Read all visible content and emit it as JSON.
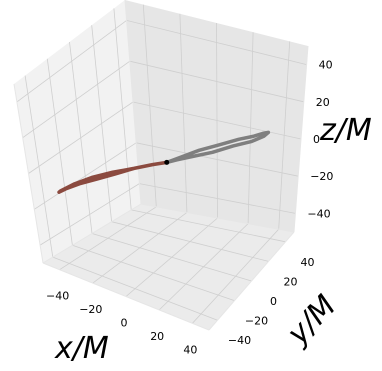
{
  "chart_data": {
    "type": "line3d",
    "xlabel": "x/M",
    "ylabel": "y/M",
    "zlabel": "z/M",
    "xlim": [
      -50,
      50
    ],
    "ylim": [
      -50,
      50
    ],
    "zlim": [
      -50,
      50
    ],
    "xticks": [
      "−40",
      "−20",
      "0",
      "20",
      "40"
    ],
    "yticks": [
      "−40",
      "−20",
      "0",
      "20",
      "40"
    ],
    "zticks": [
      "−40",
      "−20",
      "0",
      "20",
      "40"
    ],
    "grid": true,
    "series": [
      {
        "color": "#7f7f7f",
        "points": [
          [
            0,
            0,
            0
          ],
          [
            6,
            6,
            2
          ],
          [
            12,
            12,
            4
          ],
          [
            20,
            18,
            6
          ],
          [
            28,
            24,
            8
          ],
          [
            34,
            28,
            9
          ],
          [
            38,
            31,
            10
          ],
          [
            40,
            33,
            10
          ],
          [
            38,
            32,
            8
          ],
          [
            33,
            28,
            6
          ],
          [
            26,
            22,
            5
          ],
          [
            18,
            15,
            3
          ],
          [
            10,
            8,
            2
          ],
          [
            4,
            3,
            1
          ],
          [
            0,
            0,
            0
          ]
        ]
      },
      {
        "color": "#8b4a3f",
        "points": [
          [
            0,
            0,
            0
          ],
          [
            -6,
            -4,
            -1
          ],
          [
            -14,
            -9,
            -3
          ],
          [
            -22,
            -14,
            -6
          ],
          [
            -30,
            -19,
            -9
          ],
          [
            -38,
            -24,
            -12
          ],
          [
            -44,
            -28,
            -15
          ],
          [
            -47,
            -30,
            -17
          ],
          [
            -46,
            -30,
            -16
          ],
          [
            -40,
            -26,
            -12
          ],
          [
            -32,
            -21,
            -8
          ],
          [
            -23,
            -15,
            -5
          ],
          [
            -14,
            -9,
            -3
          ],
          [
            -6,
            -4,
            -1
          ],
          [
            0,
            0,
            0
          ]
        ]
      }
    ],
    "marker": {
      "color": "#000000",
      "point": [
        0,
        0,
        0
      ]
    }
  }
}
